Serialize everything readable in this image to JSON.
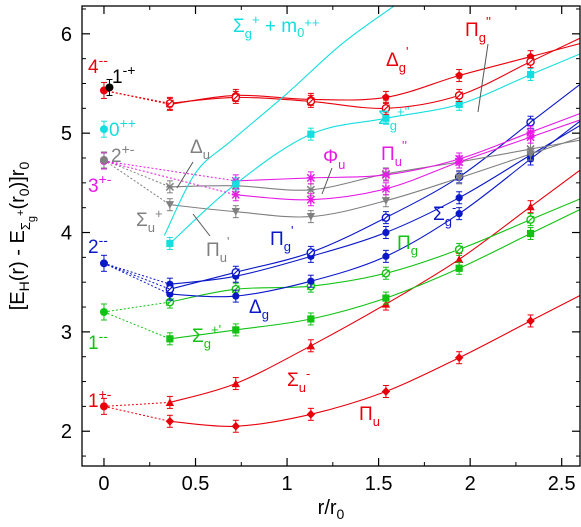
{
  "chart_data": {
    "type": "line",
    "xlabel": "r/r₀",
    "ylabel": "[E_H(r) - E_Σg+(r₀)]r₀",
    "xlim": [
      -0.12,
      2.6
    ],
    "ylim": [
      1.65,
      6.28
    ],
    "xticks": [
      0,
      0.5,
      1,
      1.5,
      2,
      2.5
    ],
    "yticks": [
      2,
      3,
      4,
      5,
      6
    ],
    "xtick_labels": [
      "0",
      "0.5",
      "1",
      "1.5",
      "2",
      "2.5"
    ],
    "ytick_labels": [
      "2",
      "3",
      "4",
      "5",
      "6"
    ],
    "grid": false,
    "series": [
      {
        "name": "Πu",
        "color": "#e8000b",
        "marker": "diamond",
        "values": [
          [
            0.36,
            2.1
          ],
          [
            0.72,
            2.05
          ],
          [
            1.13,
            2.17
          ],
          [
            1.54,
            2.4
          ],
          [
            1.94,
            2.74
          ],
          [
            2.33,
            3.11
          ]
        ]
      },
      {
        "name": "Σu-",
        "color": "#e8000b",
        "marker": "triangle",
        "values": [
          [
            0.36,
            2.29
          ],
          [
            0.72,
            2.48
          ],
          [
            1.13,
            2.86
          ],
          [
            1.54,
            3.28
          ],
          [
            1.94,
            3.73
          ],
          [
            2.33,
            4.26
          ]
        ]
      },
      {
        "name": "Σg+'",
        "color": "#12c212",
        "marker": "square",
        "values": [
          [
            0.36,
            2.93
          ],
          [
            0.72,
            3.02
          ],
          [
            1.13,
            3.13
          ],
          [
            1.54,
            3.34
          ],
          [
            1.94,
            3.64
          ],
          [
            2.33,
            3.99
          ]
        ]
      },
      {
        "name": "Πg",
        "color": "#12c212",
        "marker": "circle-open",
        "values": [
          [
            0.36,
            3.3
          ],
          [
            0.72,
            3.43
          ],
          [
            1.13,
            3.46
          ],
          [
            1.54,
            3.59
          ],
          [
            1.94,
            3.83
          ],
          [
            2.33,
            4.13
          ]
        ]
      },
      {
        "name": "Δg",
        "color": "#0a18c8",
        "marker": "circle",
        "values": [
          [
            0.36,
            3.38
          ],
          [
            0.72,
            3.36
          ],
          [
            1.13,
            3.51
          ],
          [
            1.54,
            3.76
          ],
          [
            1.94,
            4.19
          ],
          [
            2.33,
            4.74
          ]
        ]
      },
      {
        "name": "Πg'",
        "color": "#0a18c8",
        "marker": "circle",
        "values": [
          [
            0.36,
            3.48
          ],
          [
            0.72,
            3.56
          ],
          [
            1.13,
            3.76
          ],
          [
            1.54,
            4.0
          ],
          [
            1.94,
            4.35
          ],
          [
            2.33,
            4.78
          ]
        ]
      },
      {
        "name": "Σg-",
        "color": "#0a18c8",
        "marker": "circle-open",
        "values": [
          [
            0.36,
            3.43
          ],
          [
            0.72,
            3.6
          ],
          [
            1.13,
            3.8
          ],
          [
            1.54,
            4.15
          ],
          [
            1.94,
            4.56
          ],
          [
            2.33,
            5.11
          ]
        ]
      },
      {
        "name": "Πu'",
        "color": "#808080",
        "marker": "triangle-down",
        "values": [
          [
            0.36,
            4.28
          ],
          [
            0.72,
            4.21
          ],
          [
            1.13,
            4.16
          ],
          [
            1.54,
            4.32
          ],
          [
            1.94,
            4.55
          ],
          [
            2.33,
            4.79
          ]
        ]
      },
      {
        "name": "Σu+",
        "color": "#808080",
        "marker": "cross",
        "values": [
          [
            0.36,
            4.46
          ],
          [
            0.72,
            4.47
          ],
          [
            1.13,
            4.43
          ],
          [
            1.54,
            4.59
          ],
          [
            1.94,
            4.71
          ],
          [
            2.33,
            4.84
          ]
        ]
      },
      {
        "name": "Φu",
        "color": "#e619e6",
        "marker": "star",
        "values": [
          [
            0.72,
            4.38
          ],
          [
            1.13,
            4.33
          ],
          [
            1.54,
            4.44
          ],
          [
            1.94,
            4.71
          ],
          [
            2.33,
            4.96
          ]
        ]
      },
      {
        "name": "Πu''",
        "color": "#e619e6",
        "marker": "star",
        "values": [
          [
            0.72,
            4.52
          ],
          [
            1.13,
            4.55
          ],
          [
            1.54,
            4.58
          ],
          [
            1.94,
            4.74
          ],
          [
            2.33,
            5.01
          ]
        ]
      },
      {
        "name": "Σg+''",
        "color": "#15dede",
        "marker": "square",
        "values": [
          [
            0.36,
            3.89
          ],
          [
            0.72,
            4.49
          ],
          [
            1.13,
            4.99
          ],
          [
            1.54,
            5.15
          ],
          [
            1.94,
            5.29
          ],
          [
            2.33,
            5.59
          ]
        ]
      },
      {
        "name": "Δg'",
        "color": "#e8000b",
        "marker": "pentagon",
        "values": [
          [
            0.36,
            5.29
          ],
          [
            0.72,
            5.38
          ],
          [
            1.13,
            5.34
          ],
          [
            1.54,
            5.36
          ],
          [
            1.94,
            5.58
          ],
          [
            2.33,
            5.77
          ]
        ]
      },
      {
        "name": "Πg''",
        "color": "#e8000b",
        "marker": "circle-open",
        "values": [
          [
            0.36,
            5.3
          ],
          [
            0.72,
            5.36
          ],
          [
            1.13,
            5.32
          ],
          [
            1.54,
            5.25
          ],
          [
            1.94,
            5.38
          ],
          [
            2.33,
            5.72
          ]
        ]
      }
    ],
    "free_gluon_line": {
      "name": "Σg+ + m0++",
      "color": "#15dede",
      "values": [
        [
          0.33,
          3.97
        ],
        [
          0.5,
          4.6
        ],
        [
          0.7,
          4.93
        ],
        [
          1.0,
          5.4
        ],
        [
          1.3,
          5.9
        ],
        [
          1.6,
          6.3
        ]
      ]
    },
    "glueball_points": [
      {
        "label": "1⁺⁻",
        "color": "#e8000b",
        "x": 0,
        "y": 2.25
      },
      {
        "label": "1⁻⁻",
        "color": "#12c212",
        "x": 0,
        "y": 3.2
      },
      {
        "label": "2⁻⁻",
        "color": "#0a18c8",
        "x": 0,
        "y": 3.69
      },
      {
        "label": "3⁺⁻",
        "color": "#e619e6",
        "x": 0,
        "y": 4.72
      },
      {
        "label": "2⁺⁻",
        "color": "#808080",
        "x": 0,
        "y": 4.73
      },
      {
        "label": "0⁺⁺",
        "color": "#15dede",
        "x": 0,
        "y": 5.04
      },
      {
        "label": "4⁻⁻",
        "color": "#e8000b",
        "x": 0,
        "y": 5.43
      },
      {
        "label": "1⁻⁺",
        "color": "#000000",
        "x": 0.03,
        "y": 5.46
      }
    ],
    "dotted_links": [
      {
        "color": "#e8000b",
        "from": [
          0,
          2.25
        ],
        "to": [
          [
            0.36,
            2.29
          ],
          [
            0.36,
            2.1
          ]
        ]
      },
      {
        "color": "#12c212",
        "from": [
          0,
          3.2
        ],
        "to": [
          [
            0.36,
            3.3
          ],
          [
            0.36,
            2.93
          ]
        ]
      },
      {
        "color": "#0a18c8",
        "from": [
          0,
          3.69
        ],
        "to": [
          [
            0.36,
            3.48
          ],
          [
            0.36,
            3.43
          ],
          [
            0.36,
            3.38
          ]
        ]
      },
      {
        "color": "#808080",
        "from": [
          0,
          4.73
        ],
        "to": [
          [
            0.36,
            4.46
          ],
          [
            0.36,
            4.28
          ]
        ]
      },
      {
        "color": "#e619e6",
        "from": [
          0,
          4.72
        ],
        "to": [
          [
            0.72,
            4.52
          ],
          [
            0.72,
            4.38
          ]
        ]
      },
      {
        "color": "#e8000b",
        "from": [
          0,
          5.43
        ],
        "to": [
          [
            0.36,
            5.29
          ],
          [
            0.36,
            5.3
          ]
        ]
      }
    ]
  }
}
